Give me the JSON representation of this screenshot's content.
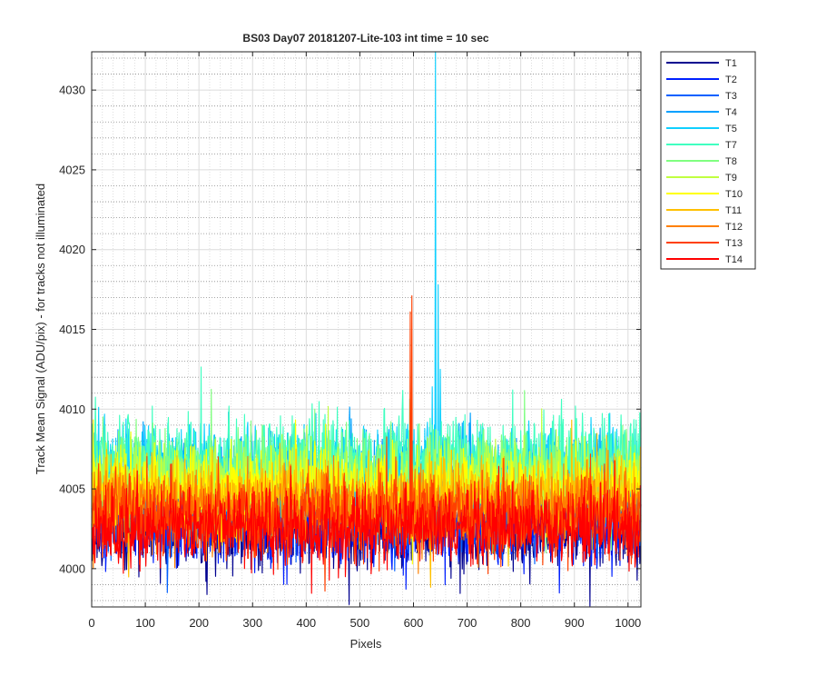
{
  "chart_data": {
    "type": "line",
    "title": "BS03 Day07 20181207-Lite-103 int time = 10 sec",
    "xlabel": "Pixels",
    "ylabel": "Track Mean Signal (ADU/pix) - for tracks not illuminated",
    "xlim": [
      0,
      1024
    ],
    "ylim": [
      3997.6,
      4032.4
    ],
    "xticks": [
      0,
      100,
      200,
      300,
      400,
      500,
      600,
      700,
      800,
      900,
      1000
    ],
    "yticks": [
      4000,
      4005,
      4010,
      4015,
      4020,
      4025,
      4030
    ],
    "x_tick_labels": [
      "0",
      "100",
      "200",
      "300",
      "400",
      "500",
      "600",
      "700",
      "800",
      "900",
      "1000"
    ],
    "y_tick_labels": [
      "4000",
      "4005",
      "4010",
      "4015",
      "4020",
      "4025",
      "4030"
    ],
    "grid": true,
    "minor_grid": true,
    "legend_position": "outside-top-right",
    "series": [
      {
        "name": "T1",
        "color": "#00008f",
        "mean": 4002.4,
        "noise": 1.2
      },
      {
        "name": "T2",
        "color": "#0020ff",
        "mean": 4002.8,
        "noise": 1.2
      },
      {
        "name": "T3",
        "color": "#0060ff",
        "mean": 4003.6,
        "noise": 1.2
      },
      {
        "name": "T4",
        "color": "#00a0ff",
        "mean": 4005.8,
        "noise": 1.3
      },
      {
        "name": "T5",
        "color": "#10d0ff",
        "mean": 4006.4,
        "noise": 1.3,
        "spikes": [
          {
            "x": 641,
            "y": 4032.4
          },
          {
            "x": 646,
            "y": 4017.8
          },
          {
            "x": 650,
            "y": 4012.5
          }
        ]
      },
      {
        "name": "T7",
        "color": "#40ffc0",
        "mean": 4006.8,
        "noise": 1.4
      },
      {
        "name": "T8",
        "color": "#80ff80",
        "mean": 4006.0,
        "noise": 1.3
      },
      {
        "name": "T9",
        "color": "#c0ff40",
        "mean": 4005.4,
        "noise": 1.2
      },
      {
        "name": "T10",
        "color": "#ffff00",
        "mean": 4005.0,
        "noise": 1.2
      },
      {
        "name": "T11",
        "color": "#ffc000",
        "mean": 4004.4,
        "noise": 1.2
      },
      {
        "name": "T12",
        "color": "#ff8000",
        "mean": 4003.8,
        "noise": 1.2
      },
      {
        "name": "T13",
        "color": "#ff4000",
        "mean": 4003.2,
        "noise": 1.2,
        "spikes": [
          {
            "x": 594,
            "y": 4016.1
          },
          {
            "x": 597,
            "y": 4017.1
          }
        ]
      },
      {
        "name": "T14",
        "color": "#ff0000",
        "mean": 4002.6,
        "noise": 1.1
      }
    ]
  }
}
